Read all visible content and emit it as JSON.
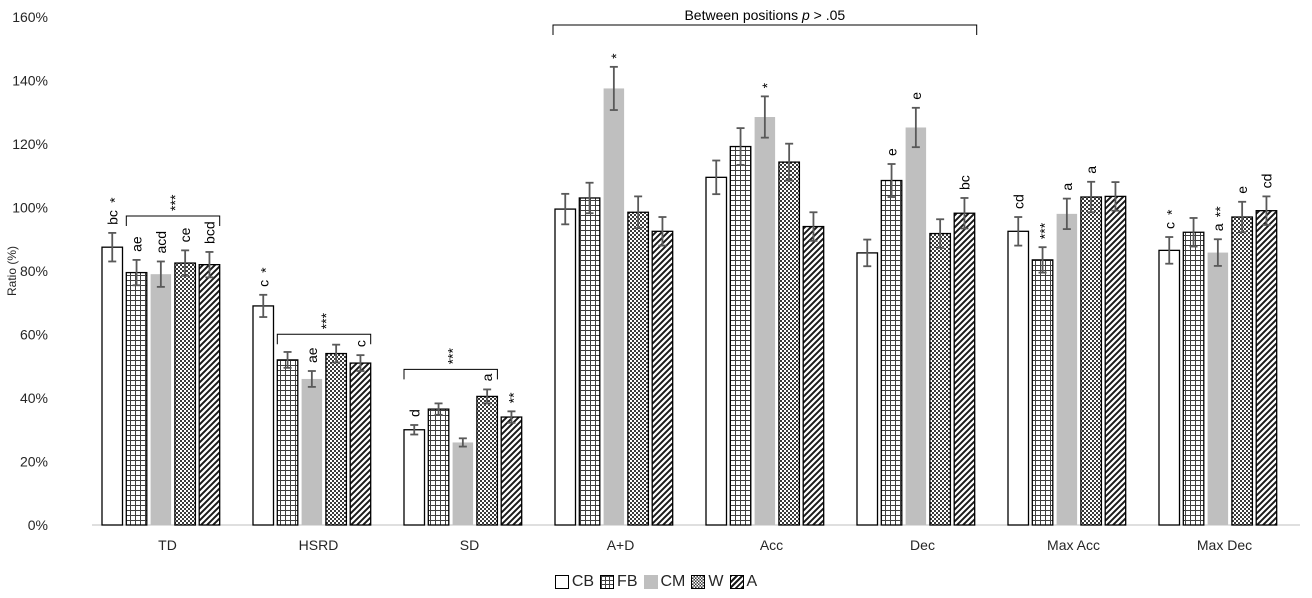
{
  "chart_data": {
    "type": "bar",
    "ylabel": "Ratio (%)",
    "ylim": [
      0,
      160
    ],
    "yticks": [
      "0%",
      "20%",
      "40%",
      "60%",
      "80%",
      "100%",
      "120%",
      "140%",
      "160%"
    ],
    "categories": [
      "TD",
      "HSRD",
      "SD",
      "A+D",
      "Acc",
      "Dec",
      "Max Acc",
      "Max Dec"
    ],
    "series": [
      {
        "name": "CB",
        "pattern": "empty",
        "values": [
          87.5,
          69,
          30,
          99.5,
          109.5,
          85.7,
          92.5,
          86.5
        ],
        "errors": [
          4.5,
          3.5,
          1.5,
          4.8,
          5.3,
          4.2,
          4.5,
          4.2
        ]
      },
      {
        "name": "FB",
        "pattern": "grid",
        "values": [
          79.5,
          52,
          36.5,
          103,
          119.2,
          108.5,
          83.5,
          92.2
        ],
        "errors": [
          4,
          2.5,
          1.8,
          4.8,
          5.8,
          5.2,
          4,
          4.5
        ]
      },
      {
        "name": "CM",
        "pattern": "solid",
        "values": [
          79,
          46,
          26,
          137.5,
          128.5,
          125.2,
          98,
          85.8
        ],
        "errors": [
          4,
          2.5,
          1.3,
          6.8,
          6.5,
          6.2,
          4.8,
          4.2
        ]
      },
      {
        "name": "W",
        "pattern": "checker",
        "values": [
          82.5,
          54,
          40.5,
          98.5,
          114.3,
          91.8,
          103.3,
          97
        ],
        "errors": [
          4,
          2.8,
          2.2,
          5,
          5.8,
          4.5,
          4.8,
          4.8
        ]
      },
      {
        "name": "A",
        "pattern": "diagonal",
        "values": [
          82,
          51,
          34,
          92.5,
          94,
          98.2,
          103.5,
          99
        ],
        "errors": [
          4,
          2.5,
          1.8,
          4.5,
          4.5,
          4.8,
          4.5,
          4.5
        ]
      }
    ],
    "bar_letters": [
      {
        "category": 0,
        "series": 0,
        "text": "bc"
      },
      {
        "category": 0,
        "series": 1,
        "text": "ae"
      },
      {
        "category": 0,
        "series": 2,
        "text": "acd"
      },
      {
        "category": 0,
        "series": 3,
        "text": "ce"
      },
      {
        "category": 0,
        "series": 4,
        "text": "bcd"
      },
      {
        "category": 1,
        "series": 0,
        "text": "c"
      },
      {
        "category": 1,
        "series": 2,
        "text": "ae"
      },
      {
        "category": 1,
        "series": 4,
        "text": "c"
      },
      {
        "category": 2,
        "series": 0,
        "text": "d"
      },
      {
        "category": 2,
        "series": 3,
        "text": "a"
      },
      {
        "category": 5,
        "series": 1,
        "text": "e"
      },
      {
        "category": 5,
        "series": 2,
        "text": "e"
      },
      {
        "category": 5,
        "series": 4,
        "text": "bc"
      },
      {
        "category": 6,
        "series": 0,
        "text": "cd"
      },
      {
        "category": 6,
        "series": 2,
        "text": "a"
      },
      {
        "category": 6,
        "series": 3,
        "text": "a"
      },
      {
        "category": 7,
        "series": 0,
        "text": "c"
      },
      {
        "category": 7,
        "series": 2,
        "text": "a"
      },
      {
        "category": 7,
        "series": 3,
        "text": "e"
      },
      {
        "category": 7,
        "series": 4,
        "text": "cd"
      }
    ],
    "bar_stars": [
      {
        "category": 0,
        "series": 0,
        "text": "*"
      },
      {
        "category": 1,
        "series": 0,
        "text": "*"
      },
      {
        "category": 2,
        "series": 4,
        "text": "**"
      },
      {
        "category": 3,
        "series": 2,
        "text": "*"
      },
      {
        "category": 4,
        "series": 2,
        "text": "*"
      },
      {
        "category": 6,
        "series": 1,
        "text": "***"
      },
      {
        "category": 7,
        "series": 0,
        "text": "*"
      },
      {
        "category": 7,
        "series": 2,
        "text": "**"
      }
    ],
    "brackets": [
      {
        "category": 0,
        "from_series": 1,
        "to_series": 4,
        "text": "***"
      },
      {
        "category": 1,
        "from_series": 1,
        "to_series": 4,
        "text": "***"
      },
      {
        "category": 2,
        "from_series": 0,
        "to_series": 3,
        "text": "***"
      }
    ],
    "span_annotation": {
      "text_before": "Between positions ",
      "text_italic": "p",
      "text_after": " > .05",
      "from_category": 3,
      "to_category": 5
    },
    "legend": {
      "position": "bottom"
    },
    "grid": false
  }
}
